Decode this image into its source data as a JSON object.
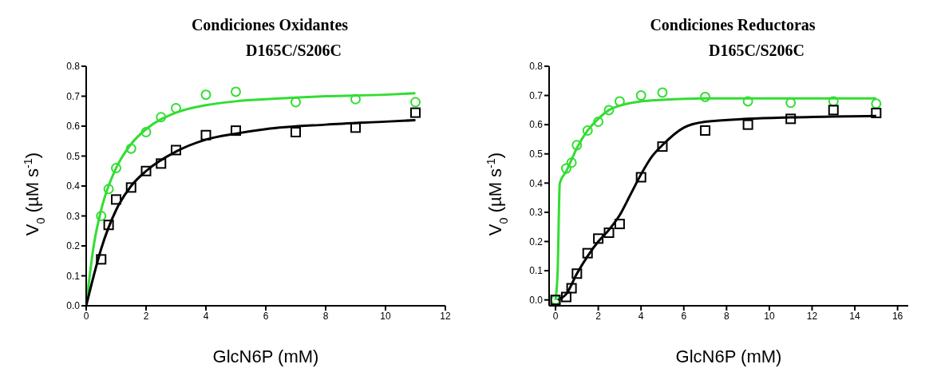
{
  "chart_data": [
    {
      "type": "scatter",
      "title": "Condiciones Oxidantes",
      "subtitle": "D165C/S206C",
      "xlabel": "GlcN6P (mM)",
      "ylabel": "V$_{0}$ (µM s$^{-1}$)",
      "xlim": [
        0,
        12
      ],
      "xticks": [
        0,
        2,
        4,
        6,
        8,
        10,
        12
      ],
      "ylim": [
        0,
        0.8
      ],
      "yticks": [
        {
          "value": 0,
          "label": "0.0"
        },
        0.1,
        0.2,
        0.3,
        0.4,
        0.5,
        0.6,
        0.7,
        0.8
      ],
      "grid": false,
      "series": [
        {
          "marker": "circle",
          "color": "#33dd33",
          "x": [
            0.5,
            0.75,
            1,
            1.5,
            2,
            2.5,
            3,
            4,
            5,
            7,
            9,
            11
          ],
          "values": [
            0.3,
            0.39,
            0.46,
            0.525,
            0.58,
            0.63,
            0.66,
            0.705,
            0.715,
            0.68,
            0.69,
            0.68
          ]
        },
        {
          "marker": "square",
          "color": "#000000",
          "x": [
            0.5,
            0.75,
            1,
            1.5,
            2,
            2.5,
            3,
            4,
            5,
            7,
            9,
            11
          ],
          "values": [
            0.155,
            0.27,
            0.355,
            0.395,
            0.45,
            0.475,
            0.52,
            0.57,
            0.585,
            0.58,
            0.595,
            0.645
          ]
        },
        {
          "type": "line",
          "line_style": "solid",
          "color": "#33dd33",
          "x": [
            0,
            0.25,
            0.5,
            1,
            1.5,
            2,
            3,
            4,
            5,
            6,
            8,
            10,
            11
          ],
          "values": [
            0,
            0.2,
            0.32,
            0.46,
            0.54,
            0.59,
            0.645,
            0.67,
            0.683,
            0.69,
            0.7,
            0.705,
            0.71
          ]
        },
        {
          "type": "line",
          "line_style": "solid",
          "color": "#000000",
          "x": [
            0,
            0.25,
            0.5,
            1,
            1.5,
            2,
            3,
            4,
            5,
            6,
            8,
            10,
            11
          ],
          "values": [
            0,
            0.1,
            0.19,
            0.32,
            0.4,
            0.45,
            0.515,
            0.555,
            0.575,
            0.59,
            0.605,
            0.615,
            0.62
          ]
        }
      ]
    },
    {
      "type": "scatter",
      "title": "Condiciones Reductoras",
      "subtitle": "D165C/S206C",
      "xlabel": "GlcN6P (mM)",
      "ylabel": "V$_{0}$ (µM s$^{-1}$)",
      "xlim": [
        -0.3,
        16.5
      ],
      "xticks": [
        0,
        2,
        4,
        6,
        8,
        10,
        12,
        14,
        16
      ],
      "ylim": [
        -0.02,
        0.8
      ],
      "yticks": [
        {
          "value": 0,
          "label": "0.0"
        },
        0.1,
        0.2,
        0.3,
        0.4,
        0.5,
        0.6,
        0.7,
        0.8
      ],
      "grid": false,
      "series": [
        {
          "marker": "circle",
          "color": "#33dd33",
          "x": [
            0,
            0.5,
            0.75,
            1,
            1.5,
            2,
            2.5,
            3,
            4,
            5,
            7,
            9,
            11,
            13,
            15
          ],
          "values": [
            0,
            0.45,
            0.47,
            0.53,
            0.58,
            0.61,
            0.65,
            0.68,
            0.7,
            0.71,
            0.695,
            0.68,
            0.675,
            0.68,
            0.672
          ]
        },
        {
          "marker": "square",
          "color": "#000000",
          "x": [
            0,
            0.5,
            0.75,
            1,
            1.5,
            2,
            2.5,
            3,
            4,
            5,
            7,
            9,
            11,
            13,
            15
          ],
          "values": [
            0,
            0.01,
            0.04,
            0.09,
            0.16,
            0.21,
            0.23,
            0.26,
            0.42,
            0.525,
            0.58,
            0.6,
            0.62,
            0.65,
            0.64
          ]
        },
        {
          "type": "line",
          "line_style": "solid",
          "color": "#33dd33",
          "x": [
            0,
            0.1,
            0.2,
            0.5,
            1,
            1.5,
            2,
            2.5,
            3,
            4,
            5,
            7,
            10,
            15
          ],
          "values": [
            0,
            0.1,
            0.4,
            0.44,
            0.52,
            0.58,
            0.62,
            0.65,
            0.665,
            0.68,
            0.685,
            0.69,
            0.69,
            0.69
          ]
        },
        {
          "type": "line",
          "line_style": "solid",
          "color": "#000000",
          "x": [
            0.1,
            0.5,
            1,
            1.5,
            2,
            2.5,
            3,
            3.5,
            4,
            4.5,
            5,
            6,
            7,
            9,
            11,
            15
          ],
          "values": [
            0,
            0.02,
            0.09,
            0.15,
            0.2,
            0.24,
            0.29,
            0.36,
            0.43,
            0.49,
            0.53,
            0.59,
            0.61,
            0.62,
            0.625,
            0.63
          ]
        }
      ]
    }
  ]
}
